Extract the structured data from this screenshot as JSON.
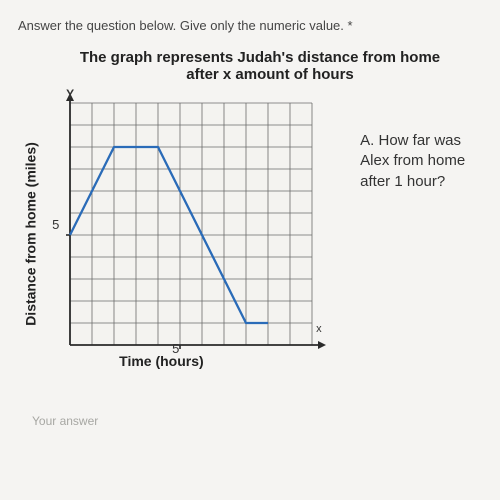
{
  "instruction": "Answer the question below. Give only the numeric value. *",
  "chart": {
    "title_line1": "The graph represents Judah's distance from home",
    "title_line2": "after x amount of hours",
    "y_axis_letter": "Y",
    "x_axis_letter": "x",
    "ylabel": "Distance from home (miles)",
    "xlabel": "Time (hours)",
    "tick_y": "5",
    "tick_x": "5",
    "grid": {
      "cols": 11,
      "rows": 11,
      "cell": 22,
      "bg": "#f4f3f0",
      "grid_color": "#6b6b6b",
      "axis_color": "#2a2a2a"
    },
    "line": {
      "color": "#2a6bb8",
      "width": 2.3,
      "points": [
        [
          0,
          5
        ],
        [
          2,
          9
        ],
        [
          4,
          9
        ],
        [
          8,
          1
        ],
        [
          9,
          1
        ]
      ]
    }
  },
  "question": {
    "l1": "A. How far was",
    "l2": "Alex from home",
    "l3": "after 1 hour?"
  },
  "answer_placeholder": "Your answer"
}
